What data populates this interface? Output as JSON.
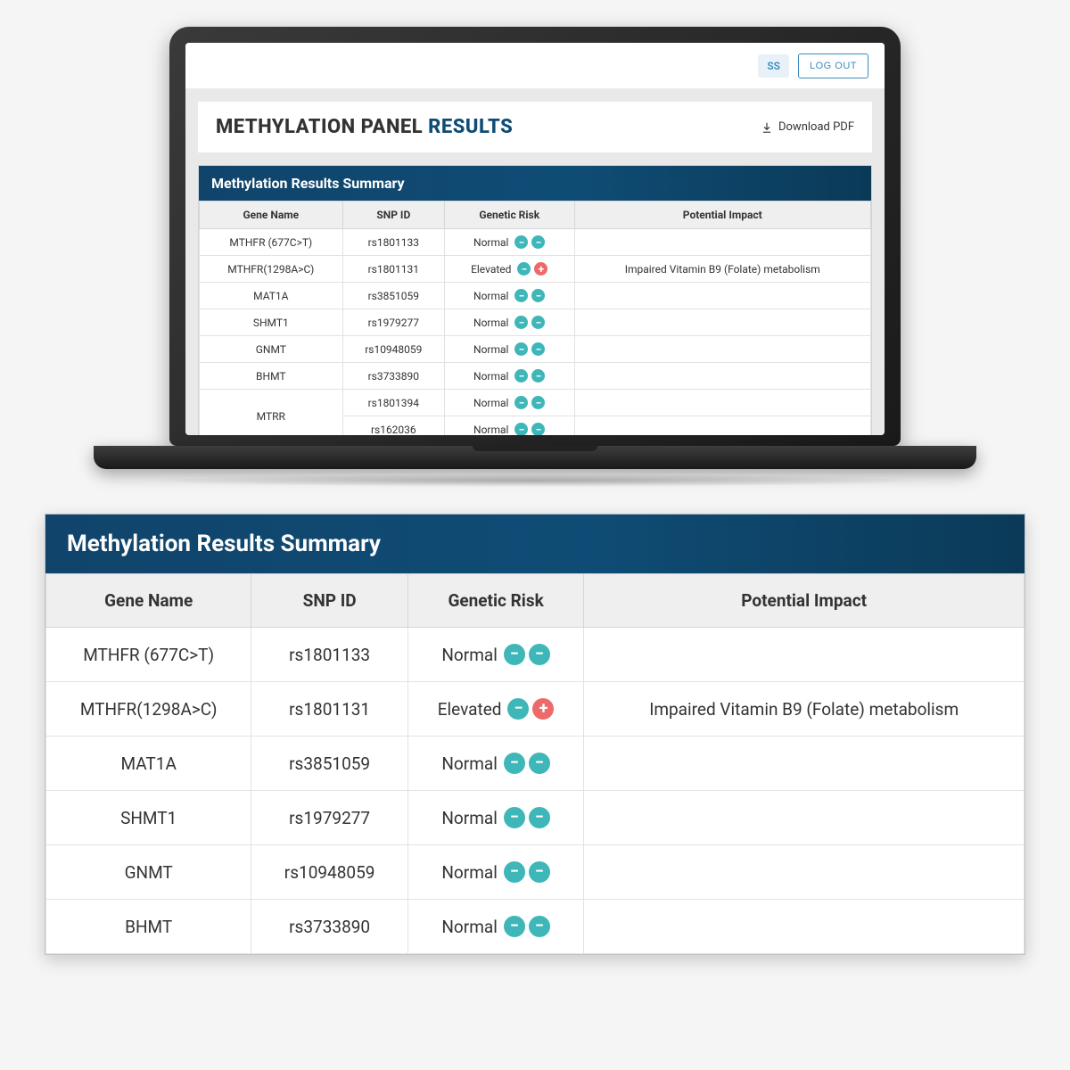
{
  "colors": {
    "brand_dark": "#0f4c75",
    "header_grad_from": "#10446b",
    "header_grad_to": "#0b3a58",
    "teal": "#3fb6b8",
    "red": "#ee6a6a",
    "bg": "#f5f5f5",
    "card": "#ffffff",
    "border": "#d6d6d6"
  },
  "topbar": {
    "initials": "SS",
    "logout": "LOG OUT"
  },
  "header": {
    "title_plain": "METHYLATION PANEL ",
    "title_accent": "RESULTS",
    "download_label": "Download PDF"
  },
  "summary_title": "Methylation Results Summary",
  "columns": {
    "gene": "Gene Name",
    "snp": "SNP ID",
    "risk": "Genetic Risk",
    "impact": "Potential Impact"
  },
  "rows_screen": [
    {
      "gene": "MTHFR (677C>T)",
      "snp": "rs1801133",
      "risk": "Normal",
      "dots": [
        "minus",
        "minus"
      ],
      "impact": ""
    },
    {
      "gene": "MTHFR(1298A>C)",
      "snp": "rs1801131",
      "risk": "Elevated",
      "dots": [
        "minus",
        "plus"
      ],
      "impact": "Impaired Vitamin B9 (Folate) metabolism"
    },
    {
      "gene": "MAT1A",
      "snp": "rs3851059",
      "risk": "Normal",
      "dots": [
        "minus",
        "minus"
      ],
      "impact": ""
    },
    {
      "gene": "SHMT1",
      "snp": "rs1979277",
      "risk": "Normal",
      "dots": [
        "minus",
        "minus"
      ],
      "impact": ""
    },
    {
      "gene": "GNMT",
      "snp": "rs10948059",
      "risk": "Normal",
      "dots": [
        "minus",
        "minus"
      ],
      "impact": ""
    },
    {
      "gene": "BHMT",
      "snp": "rs3733890",
      "risk": "Normal",
      "dots": [
        "minus",
        "minus"
      ],
      "impact": ""
    },
    {
      "gene": "MTRR",
      "rowspan": 2,
      "snp": "rs1801394",
      "risk": "Normal",
      "dots": [
        "minus",
        "minus"
      ],
      "impact": ""
    },
    {
      "gene": "",
      "snp": "rs162036",
      "risk": "Normal",
      "dots": [
        "minus",
        "minus"
      ],
      "impact": ""
    }
  ],
  "rows_big": [
    {
      "gene": "MTHFR (677C>T)",
      "snp": "rs1801133",
      "risk": "Normal",
      "dots": [
        "minus",
        "minus"
      ],
      "impact": ""
    },
    {
      "gene": "MTHFR(1298A>C)",
      "snp": "rs1801131",
      "risk": "Elevated",
      "dots": [
        "minus",
        "plus"
      ],
      "impact": "Impaired Vitamin B9 (Folate) metabolism"
    },
    {
      "gene": "MAT1A",
      "snp": "rs3851059",
      "risk": "Normal",
      "dots": [
        "minus",
        "minus"
      ],
      "impact": ""
    },
    {
      "gene": "SHMT1",
      "snp": "rs1979277",
      "risk": "Normal",
      "dots": [
        "minus",
        "minus"
      ],
      "impact": ""
    },
    {
      "gene": "GNMT",
      "snp": "rs10948059",
      "risk": "Normal",
      "dots": [
        "minus",
        "minus"
      ],
      "impact": ""
    },
    {
      "gene": "BHMT",
      "snp": "rs3733890",
      "risk": "Normal",
      "dots": [
        "minus",
        "minus"
      ],
      "impact": ""
    }
  ]
}
